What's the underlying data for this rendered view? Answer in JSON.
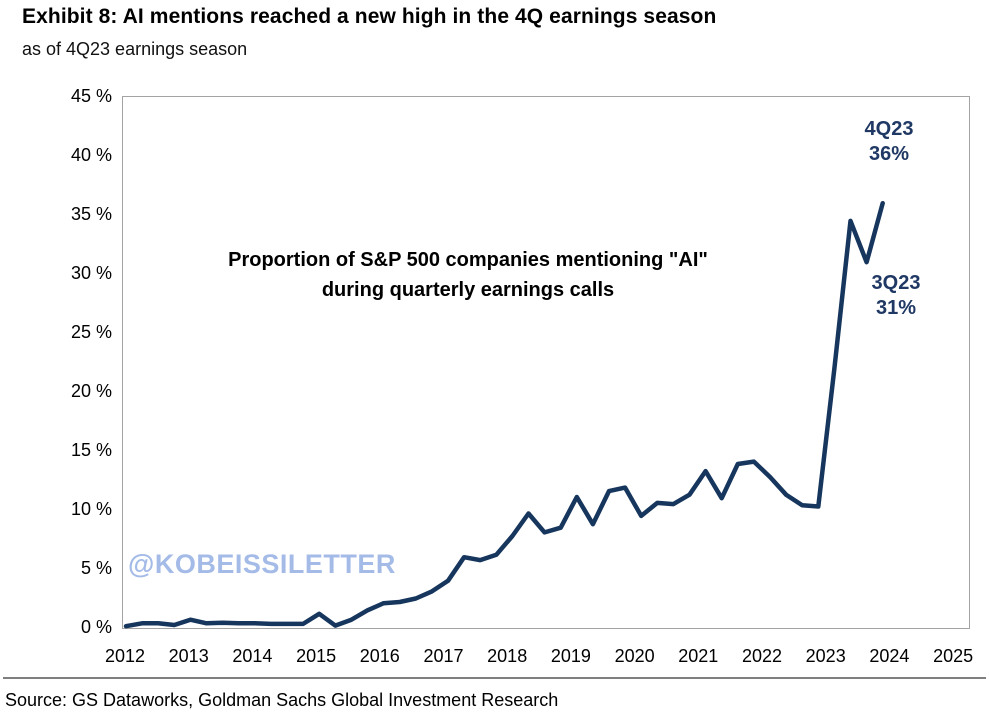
{
  "header": {
    "exhibit_title": "Exhibit 8: AI mentions reached a new high in the 4Q earnings season",
    "subtitle": "as of 4Q23 earnings season"
  },
  "watermark": "@KOBEISSILETTER",
  "footer": {
    "source": "Source: GS Dataworks, Goldman Sachs Global Investment Research"
  },
  "colors": {
    "line": "#17365d",
    "annotation_text": "#1f3864",
    "watermark": "#a4bbe8",
    "plot_border": "#a3a3a3",
    "divider": "#7f7f7f"
  },
  "chart_data": {
    "type": "line",
    "note_lines": [
      "Proportion of S&P 500 companies mentioning \"AI\"",
      "during quarterly earnings calls"
    ],
    "x": [
      "1Q12",
      "2Q12",
      "3Q12",
      "4Q12",
      "1Q13",
      "2Q13",
      "3Q13",
      "4Q13",
      "1Q14",
      "2Q14",
      "3Q14",
      "4Q14",
      "1Q15",
      "2Q15",
      "3Q15",
      "4Q15",
      "1Q16",
      "2Q16",
      "3Q16",
      "4Q16",
      "1Q17",
      "2Q17",
      "3Q17",
      "4Q17",
      "1Q18",
      "2Q18",
      "3Q18",
      "4Q18",
      "1Q19",
      "2Q19",
      "3Q19",
      "4Q19",
      "1Q20",
      "2Q20",
      "3Q20",
      "4Q20",
      "1Q21",
      "2Q21",
      "3Q21",
      "4Q21",
      "1Q22",
      "2Q22",
      "3Q22",
      "4Q22",
      "1Q23",
      "2Q23",
      "3Q23",
      "4Q23"
    ],
    "series": [
      {
        "name": "Share of S&P 500 companies mentioning AI",
        "values": [
          0.15,
          0.4,
          0.4,
          0.25,
          0.7,
          0.4,
          0.45,
          0.4,
          0.4,
          0.35,
          0.35,
          0.35,
          1.2,
          0.2,
          0.7,
          1.5,
          2.1,
          2.2,
          2.5,
          3.1,
          4.0,
          6.0,
          5.75,
          6.2,
          7.8,
          9.7,
          8.1,
          8.5,
          11.1,
          8.8,
          11.6,
          11.9,
          9.5,
          10.6,
          10.5,
          11.3,
          13.3,
          11.0,
          13.9,
          14.1,
          12.8,
          11.3,
          10.4,
          10.3,
          22.0,
          34.5,
          31.0,
          36.0
        ]
      }
    ],
    "x_axis": {
      "ticks": [
        "2012",
        "2013",
        "2014",
        "2015",
        "2016",
        "2017",
        "2018",
        "2019",
        "2020",
        "2021",
        "2022",
        "2023",
        "2024",
        "2025"
      ]
    },
    "y_axis": {
      "min": 0,
      "max": 45,
      "step": 5,
      "ticks": [
        {
          "label": "45 %",
          "value": 45
        },
        {
          "label": "40 %",
          "value": 40
        },
        {
          "label": "35 %",
          "value": 35
        },
        {
          "label": "30 %",
          "value": 30
        },
        {
          "label": "25 %",
          "value": 25
        },
        {
          "label": "20 %",
          "value": 20
        },
        {
          "label": "15 %",
          "value": 15
        },
        {
          "label": "10 %",
          "value": 10
        },
        {
          "label": "5 %",
          "value": 5
        },
        {
          "label": "0 %",
          "value": 0
        }
      ]
    },
    "grid": false,
    "legend": false,
    "annotations": [
      {
        "label": "4Q23",
        "value_text": "36%",
        "value": 36
      },
      {
        "label": "3Q23",
        "value_text": "31%",
        "value": 31
      }
    ]
  }
}
